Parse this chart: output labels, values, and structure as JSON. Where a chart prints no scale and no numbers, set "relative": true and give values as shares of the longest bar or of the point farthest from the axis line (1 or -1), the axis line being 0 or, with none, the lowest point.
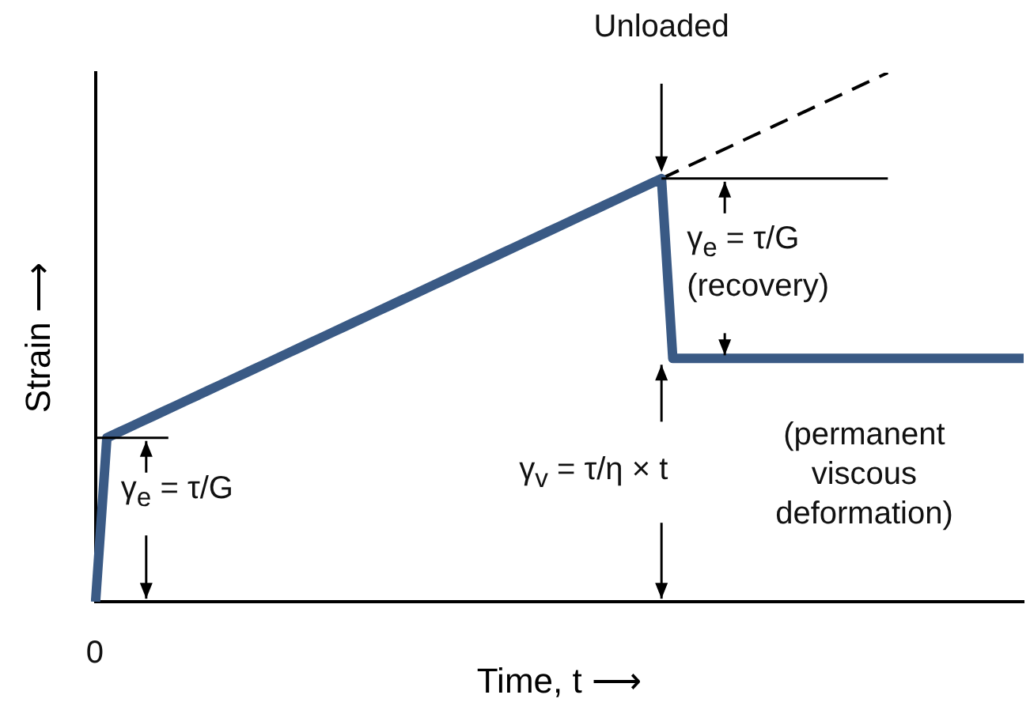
{
  "chart_data": {
    "type": "line",
    "relative": true,
    "xlabel": "Time, t ⟶",
    "ylabel": "Strain ⟶",
    "grid": false,
    "legend": false,
    "marker": "none",
    "categories": [
      null,
      null,
      null,
      null,
      null,
      null,
      null,
      null,
      null,
      null,
      null,
      null,
      null,
      null,
      null,
      null,
      null,
      null,
      null,
      null,
      null,
      null,
      null,
      null,
      null,
      null,
      null,
      null,
      null,
      null,
      null,
      null,
      null,
      null,
      null,
      null,
      null,
      null,
      null,
      null,
      null,
      null,
      null,
      null,
      null,
      null,
      null,
      null,
      null,
      null,
      null,
      null,
      null,
      null,
      null,
      null,
      null,
      null,
      null,
      null,
      null,
      null,
      null,
      null,
      null,
      null,
      null,
      null,
      null,
      null,
      null,
      null,
      null,
      null,
      null,
      null,
      null,
      null,
      null,
      null,
      null,
      null,
      null
    ],
    "series": [
      {
        "color": "#3a5a85",
        "line_style": "solid",
        "values": [
          0,
          0.31,
          0.32,
          0.33,
          0.34,
          0.35,
          0.36,
          0.37,
          0.38,
          0.39,
          0.4,
          0.41,
          0.42,
          0.43,
          0.44,
          0.45,
          0.46,
          0.47,
          0.48,
          0.49,
          0.5,
          0.51,
          0.52,
          0.53,
          0.54,
          0.55,
          0.56,
          0.57,
          0.58,
          0.59,
          0.6,
          0.61,
          0.62,
          0.63,
          0.64,
          0.65,
          0.66,
          0.67,
          0.68,
          0.69,
          0.7,
          0.71,
          0.72,
          0.73,
          0.74,
          0.75,
          0.76,
          0.77,
          0.78,
          0.79,
          0.8,
          0.46,
          0.46,
          0.46,
          0.46,
          0.46,
          0.46,
          0.46,
          0.46,
          0.46,
          0.46,
          0.46,
          0.46,
          0.46,
          0.46,
          0.46,
          0.46,
          0.46,
          0.46,
          0.46,
          0.46,
          0.46,
          0.46,
          0.46,
          0.46,
          0.46,
          0.46,
          0.46,
          0.46,
          0.46,
          0.46,
          0.46,
          0.46
        ]
      },
      {
        "color": "#000000",
        "line_style": "dashed",
        "values": [
          null,
          null,
          null,
          null,
          null,
          null,
          null,
          null,
          null,
          null,
          null,
          null,
          null,
          null,
          null,
          null,
          null,
          null,
          null,
          null,
          null,
          null,
          null,
          null,
          null,
          null,
          null,
          null,
          null,
          null,
          null,
          null,
          null,
          null,
          null,
          null,
          null,
          null,
          null,
          null,
          null,
          null,
          null,
          null,
          null,
          null,
          null,
          null,
          null,
          null,
          0.8,
          0.81,
          0.82,
          0.83,
          0.84,
          0.85,
          0.86,
          0.87,
          0.88,
          0.89,
          0.9,
          0.91,
          0.92,
          0.93,
          0.94,
          0.95,
          0.96,
          0.97,
          0.98,
          0.99,
          1,
          null,
          null,
          null,
          null,
          null,
          null,
          null,
          null,
          null,
          null,
          null,
          null
        ]
      }
    ],
    "annotations": [
      "Unloaded",
      "γ$_{e}$ = τ/G",
      "γ$_{e}$ = τ/G\n(recovery)",
      "γ$_{v}$ = τ/η × t",
      "(permanent\nviscous\ndeformation)",
      "0"
    ]
  }
}
